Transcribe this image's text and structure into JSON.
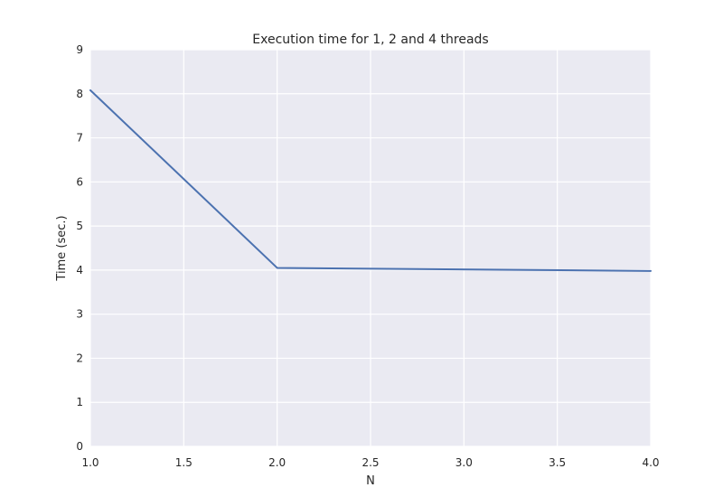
{
  "chart_data": {
    "type": "line",
    "title": "Execution time for 1, 2 and 4 threads",
    "xlabel": "N",
    "ylabel": "Time (sec.)",
    "xlim": [
      1.0,
      4.0
    ],
    "ylim": [
      0,
      9
    ],
    "xticks": [
      "1.0",
      "1.5",
      "2.0",
      "2.5",
      "3.0",
      "3.5",
      "4.0"
    ],
    "yticks": [
      "0",
      "1",
      "2",
      "3",
      "4",
      "5",
      "6",
      "7",
      "8",
      "9"
    ],
    "grid": true,
    "series": [
      {
        "x": [
          1.0,
          2.0,
          4.0
        ],
        "y": [
          8.08,
          4.05,
          3.98
        ]
      }
    ]
  },
  "colors": {
    "plot_background": "#EAEAF2",
    "grid": "#FFFFFF",
    "line": "#4C72B0",
    "text": "#262626"
  }
}
